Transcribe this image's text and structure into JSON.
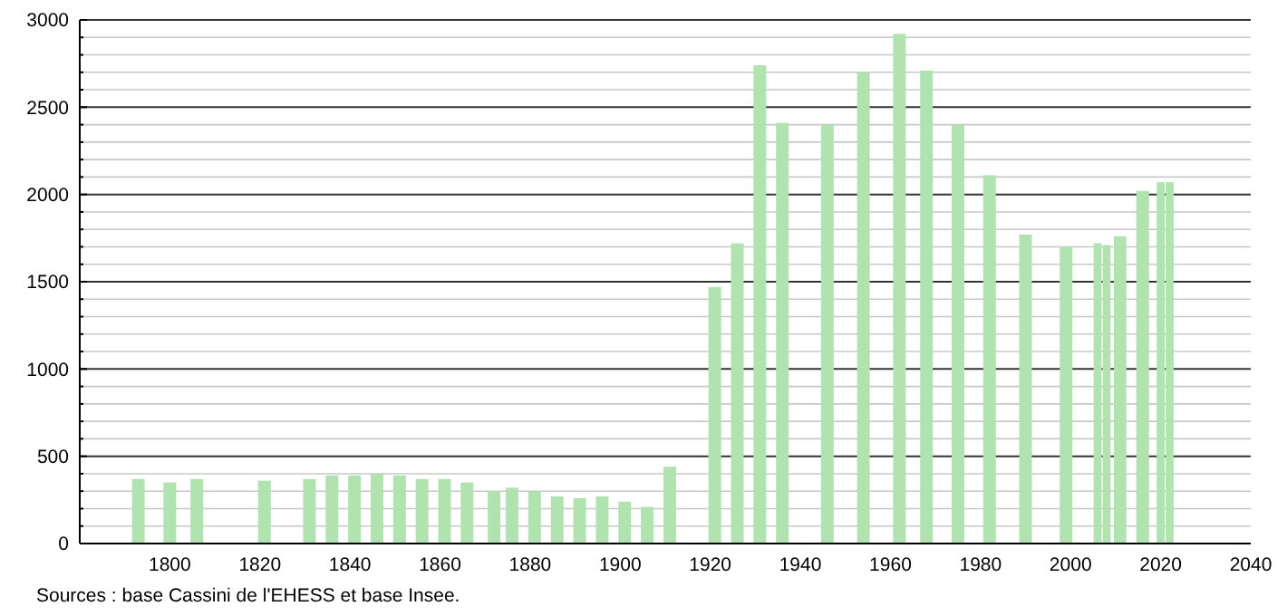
{
  "chart_data": {
    "type": "bar",
    "x": [
      1793,
      1800,
      1806,
      1821,
      1831,
      1836,
      1841,
      1846,
      1851,
      1856,
      1861,
      1866,
      1872,
      1876,
      1881,
      1886,
      1891,
      1896,
      1901,
      1906,
      1911,
      1921,
      1926,
      1931,
      1936,
      1946,
      1954,
      1962,
      1968,
      1975,
      1982,
      1990,
      1999,
      2006,
      2008,
      2011,
      2016,
      2020,
      2022
    ],
    "values": [
      370,
      350,
      370,
      360,
      370,
      390,
      390,
      400,
      390,
      370,
      370,
      350,
      300,
      320,
      300,
      270,
      260,
      270,
      240,
      210,
      440,
      1470,
      1720,
      2740,
      2410,
      2400,
      2700,
      2920,
      2710,
      2400,
      2110,
      1770,
      1700,
      1720,
      1710,
      1760,
      2020,
      2070,
      2070
    ],
    "color": "#b0e3b0",
    "xlim": [
      1780,
      2040
    ],
    "xticks": [
      1800,
      1820,
      1840,
      1860,
      1880,
      1900,
      1920,
      1940,
      1960,
      1980,
      2000,
      2020,
      2040
    ],
    "ylim": [
      0,
      3000
    ],
    "yticks": [
      0,
      {
        "value": 100,
        "label": null
      },
      {
        "value": 200,
        "label": null
      },
      {
        "value": 300,
        "label": null
      },
      {
        "value": 400,
        "label": null
      },
      500,
      {
        "value": 600,
        "label": null
      },
      {
        "value": 700,
        "label": null
      },
      {
        "value": 800,
        "label": null
      },
      {
        "value": 900,
        "label": null
      },
      1000,
      {
        "value": 1100,
        "label": null
      },
      {
        "value": 1200,
        "label": null
      },
      {
        "value": 1300,
        "label": null
      },
      {
        "value": 1400,
        "label": null
      },
      1500,
      {
        "value": 1600,
        "label": null
      },
      {
        "value": 1700,
        "label": null
      },
      {
        "value": 1800,
        "label": null
      },
      {
        "value": 1900,
        "label": null
      },
      2000,
      {
        "value": 2100,
        "label": null
      },
      {
        "value": 2200,
        "label": null
      },
      {
        "value": 2300,
        "label": null
      },
      {
        "value": 2400,
        "label": null
      },
      2500,
      {
        "value": 2600,
        "label": null
      },
      {
        "value": 2700,
        "label": null
      },
      {
        "value": 2800,
        "label": null
      },
      {
        "value": 2900,
        "label": null
      },
      3000
    ],
    "grid": "y",
    "annotations": [
      "Sources : base Cassini de l'EHESS et base Insee."
    ]
  }
}
